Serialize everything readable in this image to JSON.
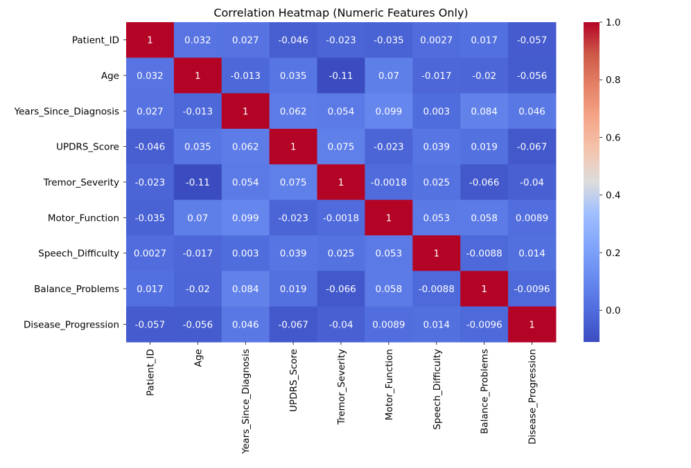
{
  "chart_data": {
    "type": "heatmap",
    "title": "Correlation Heatmap (Numeric Features Only)",
    "xlabel": "",
    "ylabel": "",
    "labels": [
      "Patient_ID",
      "Age",
      "Years_Since_Diagnosis",
      "UPDRS_Score",
      "Tremor_Severity",
      "Motor_Function",
      "Speech_Difficulty",
      "Balance_Problems",
      "Disease_Progression"
    ],
    "values": [
      [
        1,
        0.032,
        0.027,
        -0.046,
        -0.023,
        -0.035,
        0.0027,
        0.017,
        -0.057
      ],
      [
        0.032,
        1,
        -0.013,
        0.035,
        -0.11,
        0.07,
        -0.017,
        -0.02,
        -0.056
      ],
      [
        0.027,
        -0.013,
        1,
        0.062,
        0.054,
        0.099,
        0.003,
        0.084,
        0.046
      ],
      [
        -0.046,
        0.035,
        0.062,
        1,
        0.075,
        -0.023,
        0.039,
        0.019,
        -0.067
      ],
      [
        -0.023,
        -0.11,
        0.054,
        0.075,
        1,
        -0.0018,
        0.025,
        -0.066,
        -0.04
      ],
      [
        -0.035,
        0.07,
        0.099,
        -0.023,
        -0.0018,
        1,
        0.053,
        0.058,
        0.0089
      ],
      [
        0.0027,
        -0.017,
        0.003,
        0.039,
        0.025,
        0.053,
        1,
        -0.0088,
        0.014
      ],
      [
        0.017,
        -0.02,
        0.084,
        0.019,
        -0.066,
        0.058,
        -0.0088,
        1,
        -0.0096
      ],
      [
        -0.057,
        -0.056,
        0.046,
        -0.067,
        -0.04,
        0.0089,
        0.014,
        -0.0096,
        1
      ]
    ],
    "cell_labels": [
      [
        "1",
        "0.032",
        "0.027",
        "-0.046",
        "-0.023",
        "-0.035",
        "0.0027",
        "0.017",
        "-0.057"
      ],
      [
        "0.032",
        "1",
        "-0.013",
        "0.035",
        "-0.11",
        "0.07",
        "-0.017",
        "-0.02",
        "-0.056"
      ],
      [
        "0.027",
        "-0.013",
        "1",
        "0.062",
        "0.054",
        "0.099",
        "0.003",
        "0.084",
        "0.046"
      ],
      [
        "-0.046",
        "0.035",
        "0.062",
        "1",
        "0.075",
        "-0.023",
        "0.039",
        "0.019",
        "-0.067"
      ],
      [
        "-0.023",
        "-0.11",
        "0.054",
        "0.075",
        "1",
        "-0.0018",
        "0.025",
        "-0.066",
        "-0.04"
      ],
      [
        "-0.035",
        "0.07",
        "0.099",
        "-0.023",
        "-0.0018",
        "1",
        "0.053",
        "0.058",
        "0.0089"
      ],
      [
        "0.0027",
        "-0.017",
        "0.003",
        "0.039",
        "0.025",
        "0.053",
        "1",
        "-0.0088",
        "0.014"
      ],
      [
        "0.017",
        "-0.02",
        "0.084",
        "0.019",
        "-0.066",
        "0.058",
        "-0.0088",
        "1",
        "-0.0096"
      ],
      [
        "-0.057",
        "-0.056",
        "0.046",
        "-0.067",
        "-0.04",
        "0.0089",
        "0.014",
        "-0.0096",
        "1"
      ]
    ],
    "colormap": "coolwarm",
    "color_range": [
      -0.11,
      1.0
    ],
    "colorbar_ticks": [
      1.0,
      0.8,
      0.6,
      0.4,
      0.2,
      0.0
    ],
    "colorbar_tick_labels": [
      "1.0",
      "0.8",
      "0.6",
      "0.4",
      "0.2",
      "0.0"
    ],
    "colorbar_position": "right",
    "grid": false
  }
}
